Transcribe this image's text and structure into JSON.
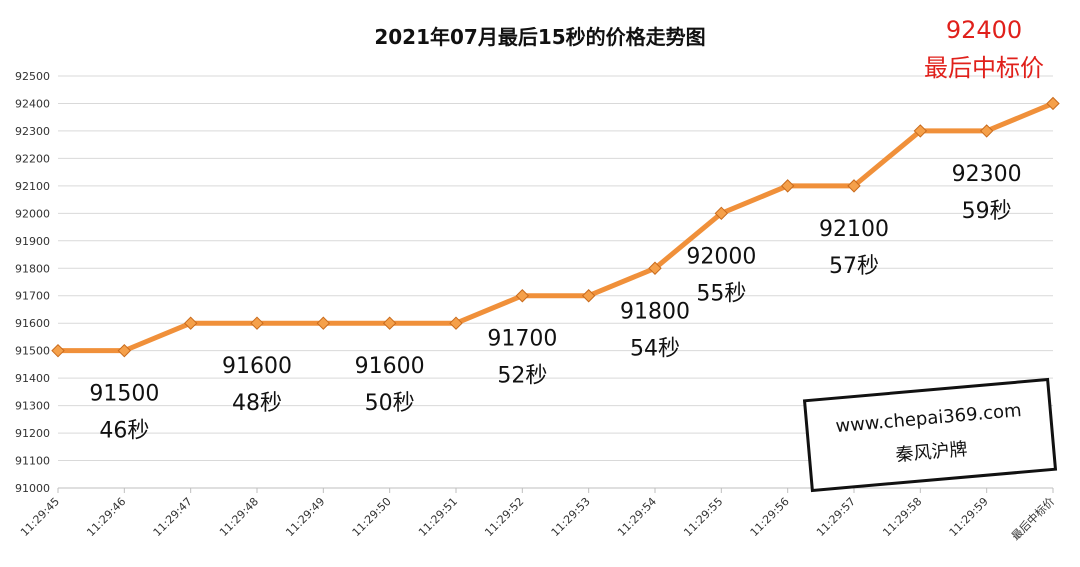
{
  "chart_data": {
    "type": "line",
    "title": "2021年07月最后15秒的价格走势图",
    "categories": [
      "11:29:45",
      "11:29:46",
      "11:29:47",
      "11:29:48",
      "11:29:49",
      "11:29:50",
      "11:29:51",
      "11:29:52",
      "11:29:53",
      "11:29:54",
      "11:29:55",
      "11:29:56",
      "11:29:57",
      "11:29:58",
      "11:29:59",
      "最后中标价"
    ],
    "values": [
      91500,
      91500,
      91600,
      91600,
      91600,
      91600,
      91600,
      91700,
      91700,
      91800,
      92000,
      92100,
      92100,
      92300,
      92300,
      92400
    ],
    "ylim": [
      91000,
      92500
    ],
    "yticks": [
      91000,
      91100,
      91200,
      91300,
      91400,
      91500,
      91600,
      91700,
      91800,
      91900,
      92000,
      92100,
      92200,
      92300,
      92400,
      92500
    ],
    "grid": true,
    "line_color": "#f0903a",
    "marker_color": "#f5a04a",
    "annotations": [
      {
        "category_index": 1,
        "price": "91500",
        "second": "46秒"
      },
      {
        "category_index": 3,
        "price": "91600",
        "second": "48秒"
      },
      {
        "category_index": 5,
        "price": "91600",
        "second": "50秒"
      },
      {
        "category_index": 7,
        "price": "91700",
        "second": "52秒"
      },
      {
        "category_index": 9,
        "price": "91800",
        "second": "54秒"
      },
      {
        "category_index": 10,
        "price": "92000",
        "second": "55秒"
      },
      {
        "category_index": 12,
        "price": "92100",
        "second": "57秒"
      },
      {
        "category_index": 14,
        "price": "92300",
        "second": "59秒"
      }
    ],
    "highlight": {
      "price": "92400",
      "label": "最后中标价",
      "color": "#e0201b"
    }
  },
  "watermark": {
    "url": "www.chepai369.com",
    "name": "秦风沪牌"
  }
}
